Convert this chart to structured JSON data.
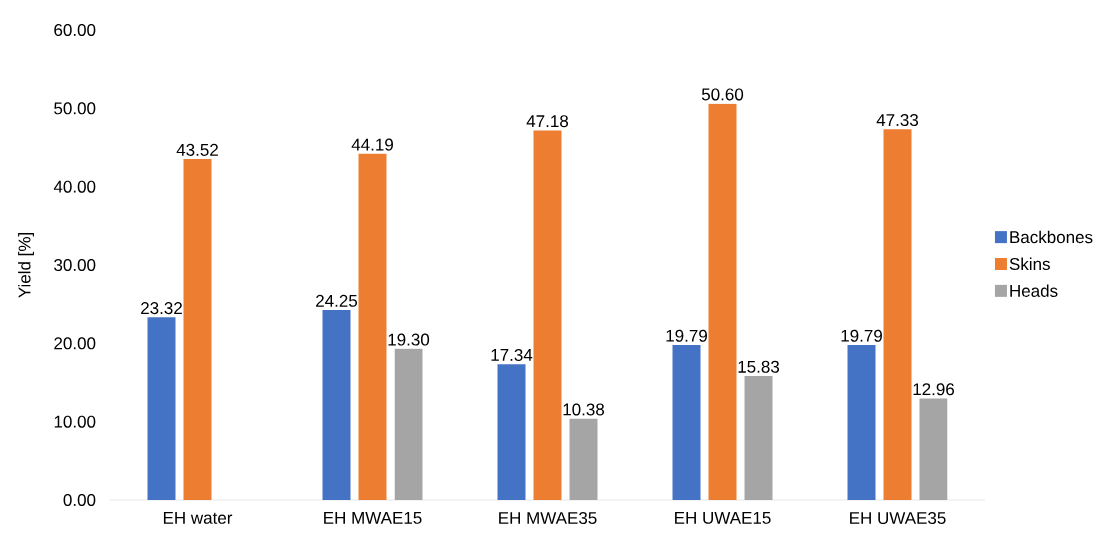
{
  "chart_data": {
    "type": "bar",
    "ylabel": "Yield [%]",
    "categories": [
      "EH water",
      "EH MWAE15",
      "EH MWAE35",
      "EH UWAE15",
      "EH UWAE35"
    ],
    "series": [
      {
        "name": "Backbones",
        "color": "#4472c4",
        "values": [
          23.32,
          24.25,
          17.34,
          19.79,
          19.79
        ],
        "value_labels": [
          "23.32",
          "24.25",
          "17.34",
          "19.79",
          "19.79"
        ]
      },
      {
        "name": "Skins",
        "color": "#ed7d31",
        "values": [
          43.52,
          44.19,
          47.18,
          50.6,
          47.33
        ],
        "value_labels": [
          "43.52",
          "44.19",
          "47.18",
          "50.60",
          "47.33"
        ]
      },
      {
        "name": "Heads",
        "color": "#a5a5a5",
        "values": [
          null,
          19.3,
          10.38,
          15.83,
          12.96
        ],
        "value_labels": [
          null,
          "19.30",
          "10.38",
          "15.83",
          "12.96"
        ]
      }
    ],
    "ylim": [
      0,
      60
    ],
    "yticks": [
      {
        "value": 0,
        "label": "0.00"
      },
      {
        "value": 10,
        "label": "10.00"
      },
      {
        "value": 20,
        "label": "20.00"
      },
      {
        "value": 30,
        "label": "30.00"
      },
      {
        "value": 40,
        "label": "40.00"
      },
      {
        "value": 50,
        "label": "50.00"
      },
      {
        "value": 60,
        "label": "60.00"
      }
    ],
    "legend": "right",
    "grid": false
  }
}
